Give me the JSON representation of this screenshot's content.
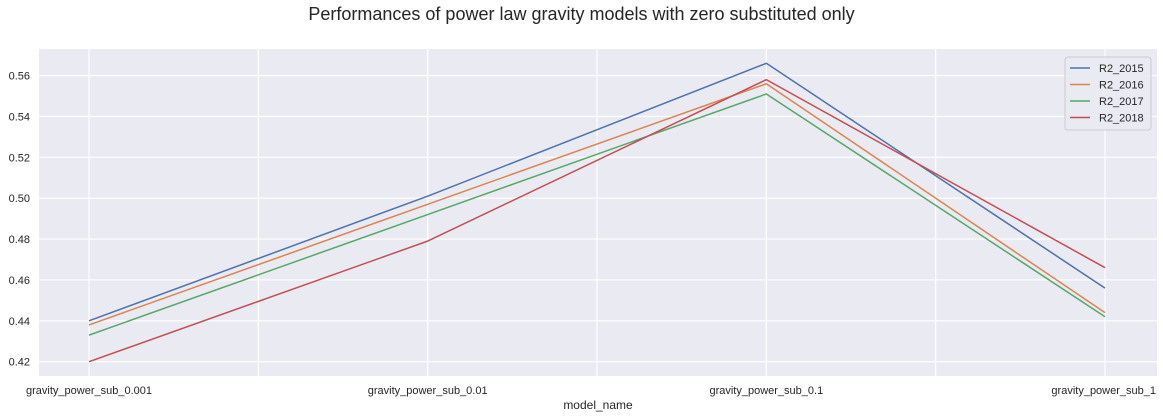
{
  "chart_data": {
    "type": "line",
    "title": "Performances of power law gravity models with zero substituted only",
    "xlabel": "model_name",
    "ylabel": "",
    "categories": [
      "gravity_power_sub_0.001",
      "gravity_power_sub_0.01",
      "gravity_power_sub_0.1",
      "gravity_power_sub_1"
    ],
    "ylim": [
      0.413,
      0.573
    ],
    "yticks": [
      0.42,
      0.44,
      0.46,
      0.48,
      0.5,
      0.52,
      0.54,
      0.56
    ],
    "ytick_labels": [
      "0.42",
      "0.44",
      "0.46",
      "0.48",
      "0.50",
      "0.52",
      "0.54",
      "0.56"
    ],
    "grid": true,
    "legend_position": "top-right",
    "series": [
      {
        "name": "R2_2015",
        "color": "#4c72b0",
        "values": [
          0.44,
          0.501,
          0.566,
          0.456
        ]
      },
      {
        "name": "R2_2016",
        "color": "#dd8452",
        "values": [
          0.438,
          0.497,
          0.556,
          0.444
        ]
      },
      {
        "name": "R2_2017",
        "color": "#55a868",
        "values": [
          0.433,
          0.492,
          0.551,
          0.442
        ]
      },
      {
        "name": "R2_2018",
        "color": "#c44e52",
        "values": [
          0.42,
          0.479,
          0.558,
          0.466
        ]
      }
    ]
  }
}
